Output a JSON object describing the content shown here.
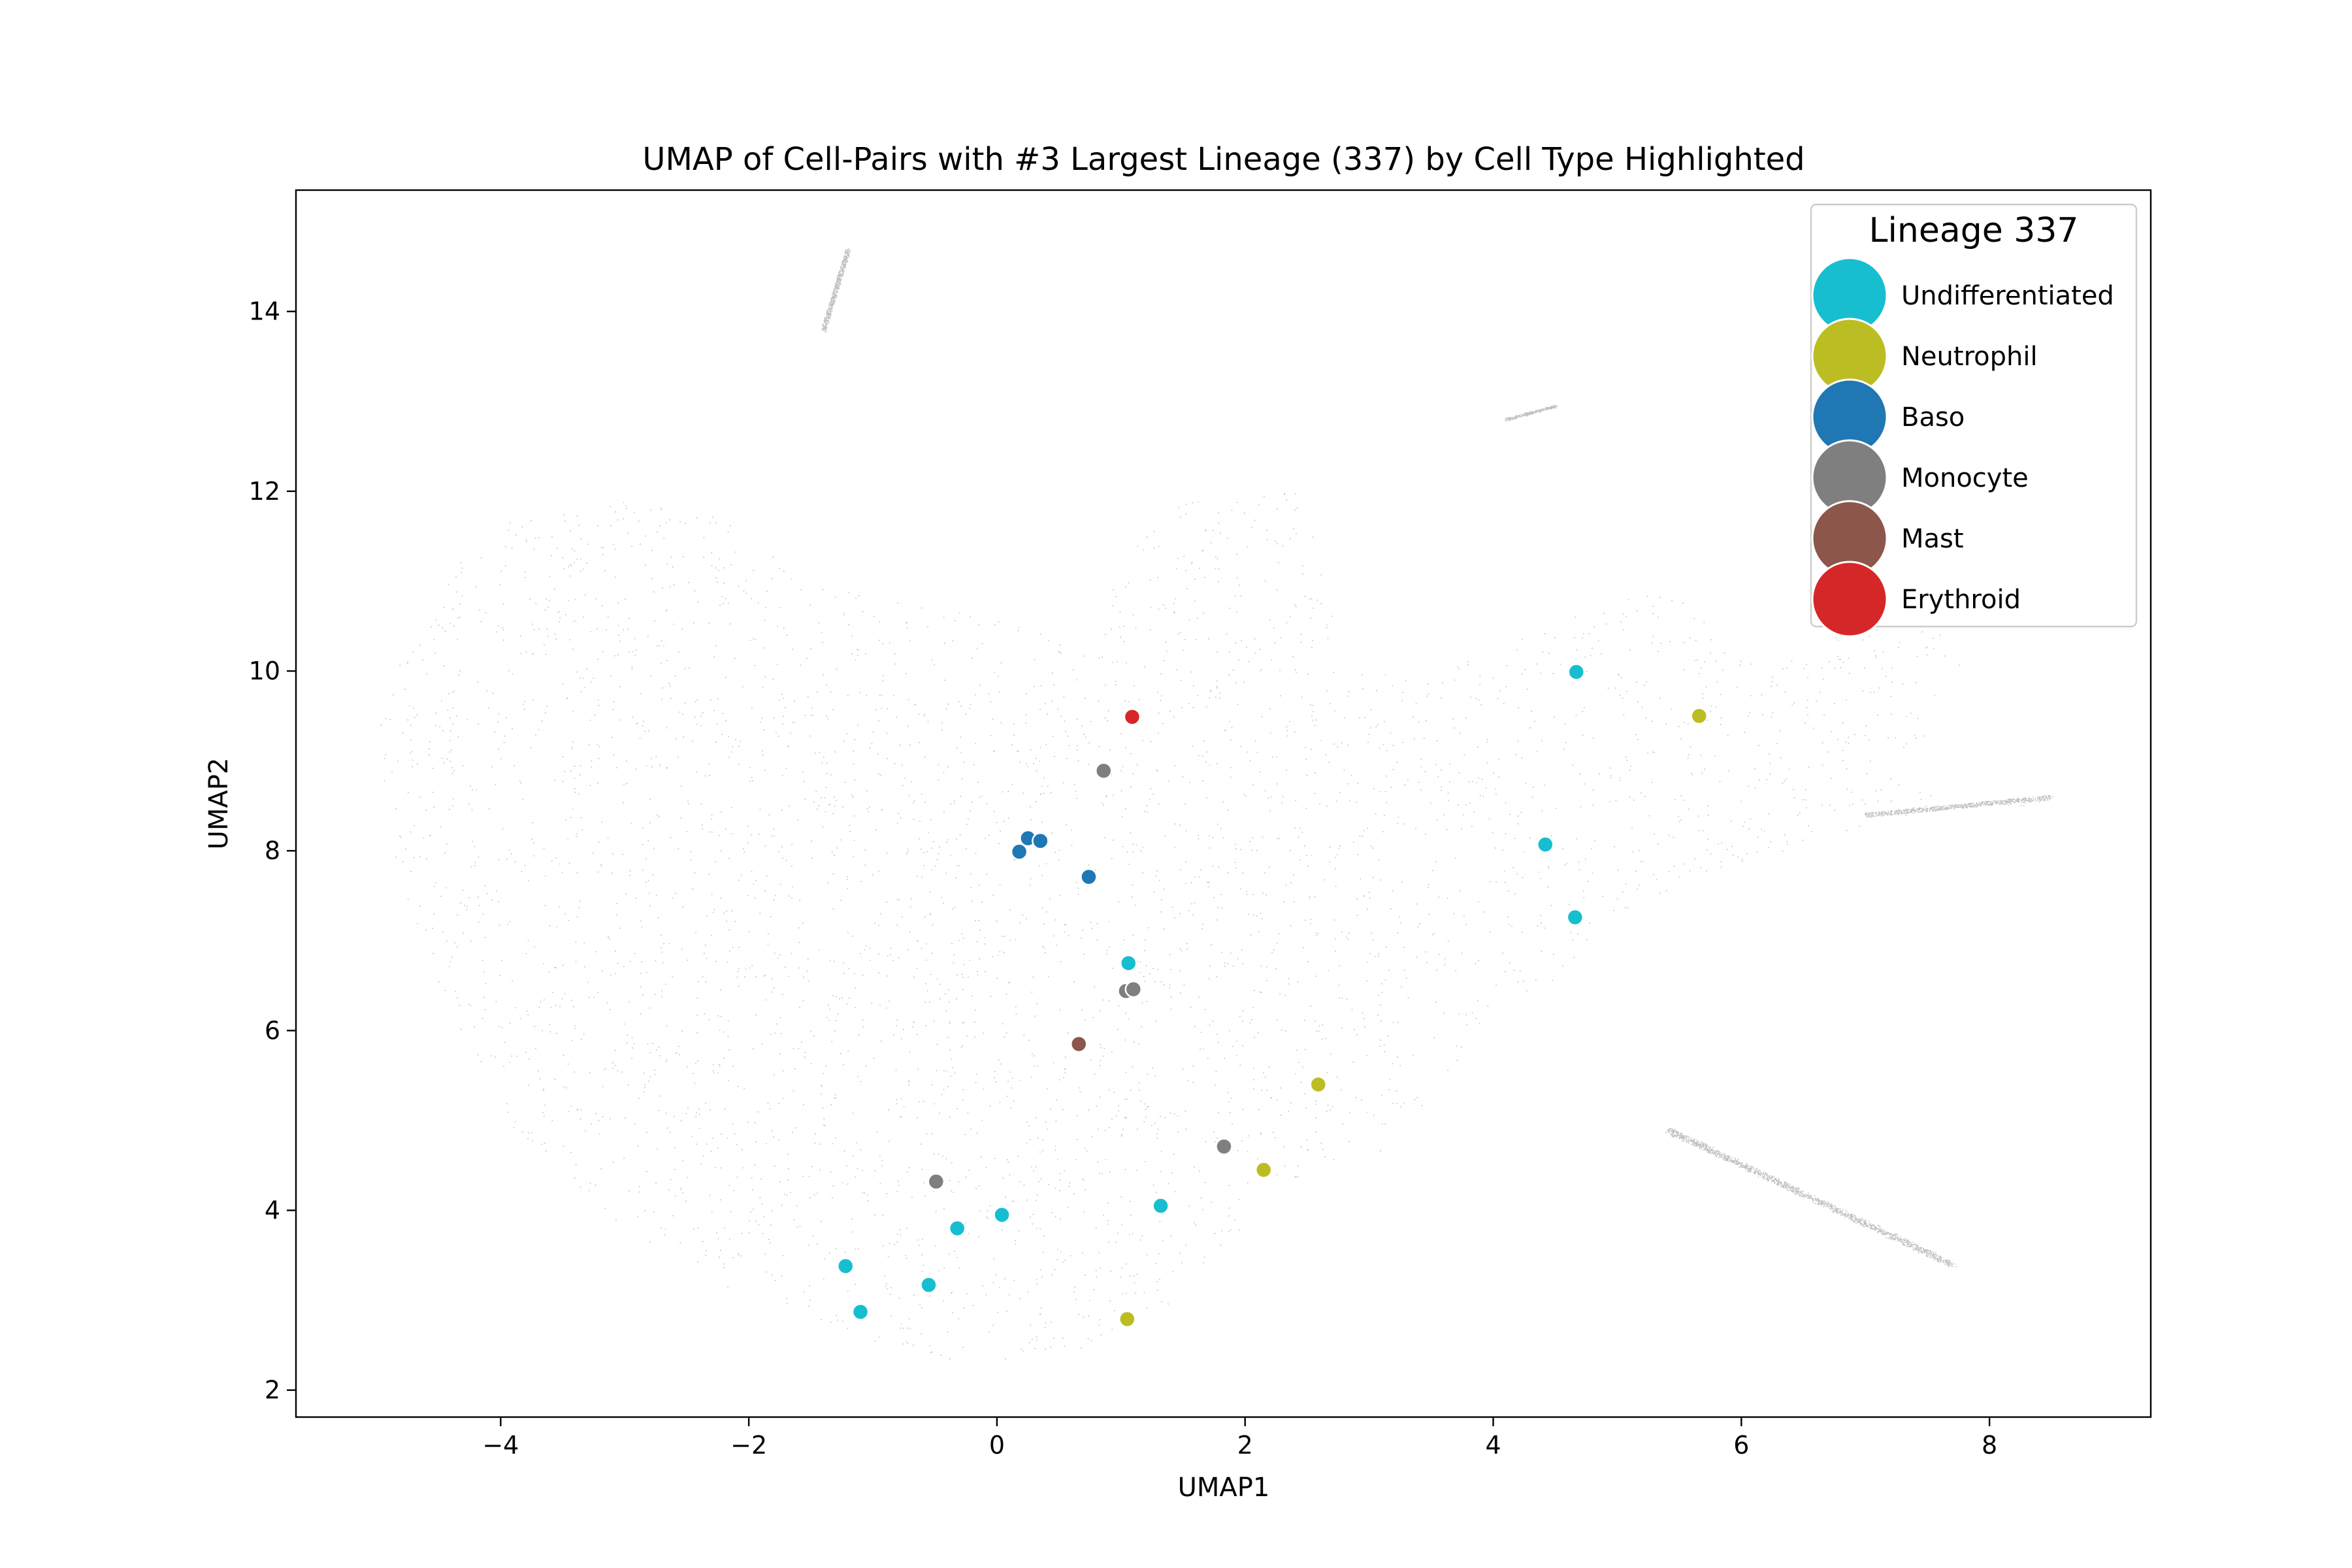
{
  "chart_data": {
    "type": "scatter",
    "title": "UMAP of Cell-Pairs with #3 Largest Lineage (337) by Cell Type Highlighted",
    "xlabel": "UMAP1",
    "ylabel": "UMAP2",
    "xlim": [
      -5.65,
      9.3
    ],
    "ylim": [
      1.7,
      15.35
    ],
    "x_ticks": [
      -4,
      -2,
      0,
      2,
      4,
      6,
      8
    ],
    "x_tick_labels": [
      "−4",
      "−2",
      "0",
      "2",
      "4",
      "6",
      "8"
    ],
    "y_ticks": [
      2,
      4,
      6,
      8,
      10,
      12,
      14
    ],
    "y_tick_labels": [
      "2",
      "4",
      "6",
      "8",
      "10",
      "12",
      "14"
    ],
    "grid": false,
    "legend": {
      "title": "Lineage 337",
      "placement": "top-right",
      "entries": [
        {
          "name": "Undifferentiated",
          "color": "#17becf"
        },
        {
          "name": "Neutrophil",
          "color": "#bcbd22"
        },
        {
          "name": "Baso",
          "color": "#1f77b4"
        },
        {
          "name": "Monocyte",
          "color": "#7f7f7f"
        },
        {
          "name": "Mast",
          "color": "#8c564b"
        },
        {
          "name": "Erythroid",
          "color": "#d62728"
        }
      ]
    },
    "background_points": {
      "description_color": "#a9a9a9",
      "approximate_count": 60000,
      "regions": [
        "main blob approx x -5 to 4.5, y 2.3 to 12",
        "right arm approx x 3 to 8.6, y 5 to 11",
        "strand x -1.4 to -1.2, y 13.8 to 14.7",
        "strand x 4.1 to 4.5, y 12.8 to 12.95",
        "strand x 5.4 to 7.7, y 3.4 to 4.9"
      ]
    },
    "series": [
      {
        "name": "Undifferentiated",
        "color": "#17becf",
        "points": [
          [
            4.67,
            9.99
          ],
          [
            4.42,
            8.07
          ],
          [
            4.66,
            7.26
          ],
          [
            1.06,
            6.75
          ],
          [
            1.32,
            4.05
          ],
          [
            0.04,
            3.95
          ],
          [
            -0.32,
            3.8
          ],
          [
            -1.22,
            3.38
          ],
          [
            -1.1,
            2.87
          ],
          [
            -0.55,
            3.17
          ]
        ]
      },
      {
        "name": "Neutrophil",
        "color": "#bcbd22",
        "points": [
          [
            5.66,
            9.5
          ],
          [
            2.59,
            5.4
          ],
          [
            2.15,
            4.45
          ],
          [
            1.05,
            2.79
          ]
        ]
      },
      {
        "name": "Baso",
        "color": "#1f77b4",
        "points": [
          [
            0.25,
            8.14
          ],
          [
            0.35,
            8.11
          ],
          [
            0.18,
            7.99
          ],
          [
            0.74,
            7.71
          ]
        ]
      },
      {
        "name": "Monocyte",
        "color": "#7f7f7f",
        "points": [
          [
            0.86,
            8.89
          ],
          [
            1.04,
            6.44
          ],
          [
            1.1,
            6.46
          ],
          [
            1.83,
            4.71
          ],
          [
            -0.49,
            4.32
          ]
        ]
      },
      {
        "name": "Mast",
        "color": "#8c564b",
        "points": [
          [
            0.66,
            5.85
          ]
        ]
      },
      {
        "name": "Erythroid",
        "color": "#d62728",
        "points": [
          [
            1.09,
            9.49
          ]
        ]
      }
    ]
  }
}
